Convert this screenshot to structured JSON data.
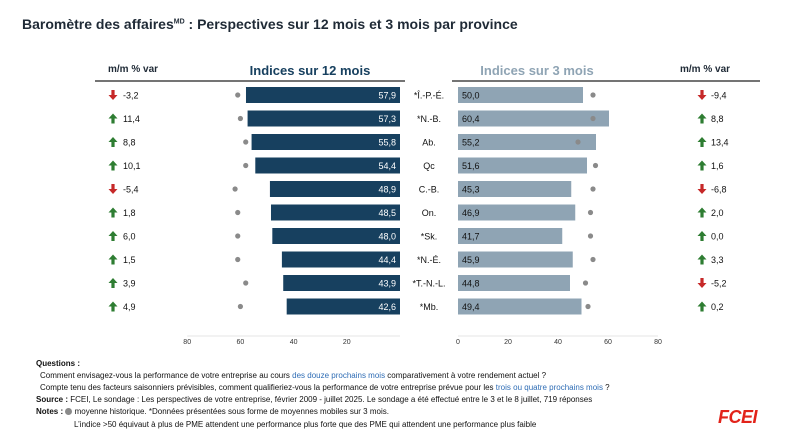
{
  "title_main": "Baromètre des affaires",
  "title_sup": "MD",
  "title_rest": " : Perspectives sur 12 mois et 3 mois par province",
  "left_var_header": "m/m % var",
  "right_var_header": "m/m % var",
  "colors": {
    "dark_bar": "#17405f",
    "light_bar": "#8fa4b4",
    "up": "#2e7d32",
    "down": "#c62828",
    "dot": "#8a8a8a",
    "accent": "#2f6db5"
  },
  "chart_data": {
    "type": "bar",
    "title": "Baromètre des affaires : Perspectives sur 12 mois et 3 mois par province",
    "categories": [
      "*Î.-P.-É.",
      "*N.-B.",
      "Ab.",
      "Qc",
      "C.-B.",
      "On.",
      "*Sk.",
      "*N.-É.",
      "*T.-N.-L.",
      "*Mb."
    ],
    "series": [
      {
        "name": "Indices sur 12 mois",
        "values": [
          57.9,
          57.3,
          55.8,
          54.4,
          48.9,
          48.5,
          48.0,
          44.4,
          43.9,
          42.6
        ],
        "labels": [
          "57,9",
          "57,3",
          "55,8",
          "54,4",
          "48,9",
          "48,5",
          "48,0",
          "44,4",
          "43,9",
          "42,6"
        ],
        "historical": [
          61,
          60,
          58,
          58,
          62,
          61,
          61,
          61,
          58,
          60
        ]
      },
      {
        "name": "Indices sur 3 mois",
        "values": [
          50.0,
          60.4,
          55.2,
          51.6,
          45.3,
          46.9,
          41.7,
          45.9,
          44.8,
          49.4
        ],
        "labels": [
          "50,0",
          "60,4",
          "55,2",
          "51,6",
          "45,3",
          "46,9",
          "41,7",
          "45,9",
          "44,8",
          "49,4"
        ],
        "historical": [
          54,
          54,
          48,
          55,
          54,
          53,
          53,
          54,
          51,
          52
        ]
      }
    ],
    "mm_var_12": [
      {
        "label": "-3,2",
        "dir": "down"
      },
      {
        "label": "11,4",
        "dir": "up"
      },
      {
        "label": "8,8",
        "dir": "up"
      },
      {
        "label": "10,1",
        "dir": "up"
      },
      {
        "label": "-5,4",
        "dir": "down"
      },
      {
        "label": "1,8",
        "dir": "up"
      },
      {
        "label": "6,0",
        "dir": "up"
      },
      {
        "label": "1,5",
        "dir": "up"
      },
      {
        "label": "3,9",
        "dir": "up"
      },
      {
        "label": "4,9",
        "dir": "up"
      }
    ],
    "mm_var_3": [
      {
        "label": "-9,4",
        "dir": "down"
      },
      {
        "label": "8,8",
        "dir": "up"
      },
      {
        "label": "13,4",
        "dir": "up"
      },
      {
        "label": "1,6",
        "dir": "up"
      },
      {
        "label": "-6,8",
        "dir": "down"
      },
      {
        "label": "2,0",
        "dir": "up"
      },
      {
        "label": "0,0",
        "dir": "up"
      },
      {
        "label": "3,3",
        "dir": "up"
      },
      {
        "label": "-5,2",
        "dir": "down"
      },
      {
        "label": "0,2",
        "dir": "up"
      }
    ],
    "left_axis": {
      "range": [
        80,
        0
      ],
      "ticks": [
        "80",
        "60",
        "40",
        "20"
      ]
    },
    "right_axis": {
      "range": [
        0,
        80
      ],
      "ticks": [
        "0",
        "20",
        "40",
        "60",
        "80"
      ]
    }
  },
  "footnotes": {
    "questions_label": "Questions :",
    "q1_pre": "Comment envisagez-vous la performance de votre entreprise au cours ",
    "q1_accent": "des douze prochains mois",
    "q1_post": " comparativement à votre rendement actuel ?",
    "q2_pre": "Compte tenu des facteurs saisonniers prévisibles, comment qualifieriez-vous la performance  de votre entreprise prévue pour les ",
    "q2_accent": "trois ou quatre prochains mois",
    "q2_post": " ?",
    "source_label": "Source :",
    "source_text": " FCEI, Le sondage : Les perspectives de votre entreprise, février 2009 - juillet 2025. Le sondage a été effectué entre le 3 et le 8 juillet, 719 réponses",
    "notes_label": "Notes :",
    "notes_text": " moyenne historique.  *Données présentées sous forme de moyennes mobiles sur 3 mois.",
    "notes_line2": "L’indice >50 équivaut à plus de PME attendent une performance plus forte que des PME qui attendent une performance plus faible"
  },
  "logo": "FCEI"
}
